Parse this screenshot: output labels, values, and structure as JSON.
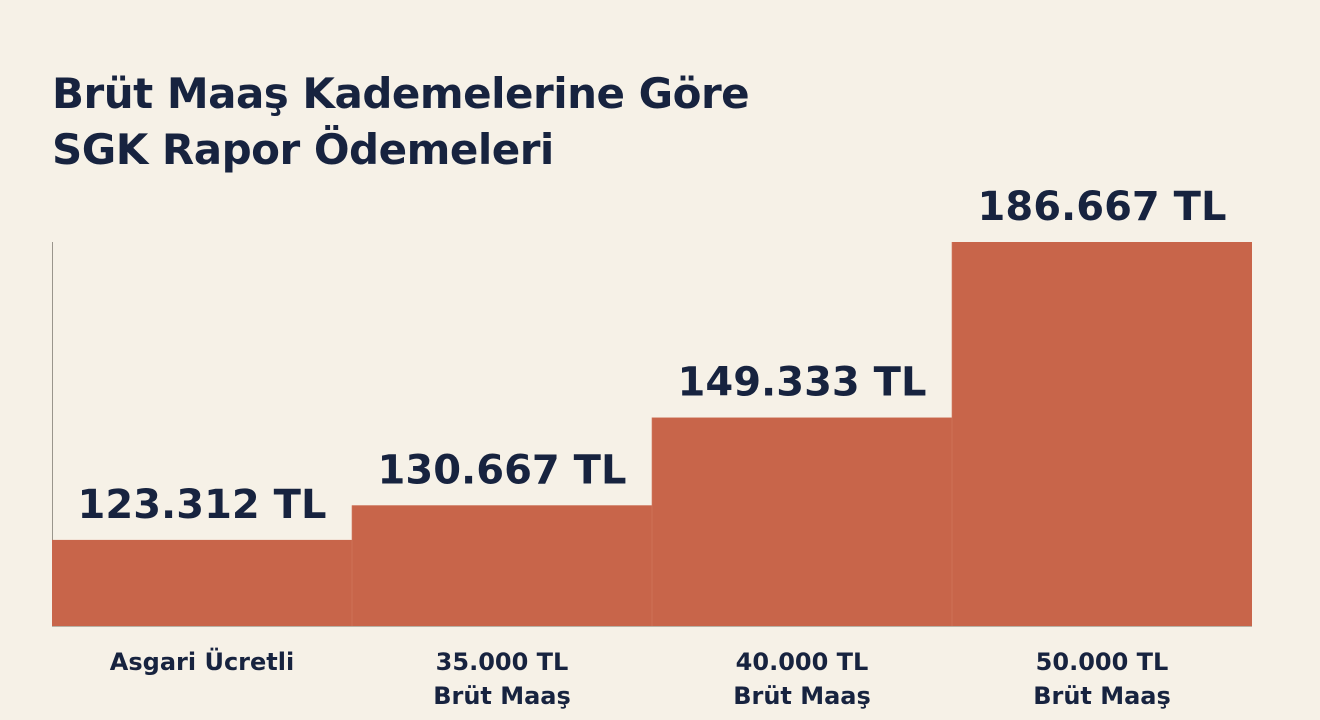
{
  "chart_data": {
    "type": "bar",
    "title_lines": [
      "Brüt Maaş Kademelerine Göre",
      "SGK Rapor Ödemeleri"
    ],
    "categories": [
      [
        "Asgari Ücretli"
      ],
      [
        "35.000 TL",
        "Brüt Maaş"
      ],
      [
        "40.000 TL",
        "Brüt Maaş"
      ],
      [
        "50.000 TL",
        "Brüt Maaş"
      ]
    ],
    "values": [
      123312,
      130667,
      149333,
      186667
    ],
    "value_labels": [
      "123.312 TL",
      "130.667 TL",
      "149.333 TL",
      "186.667 TL"
    ],
    "xlabel": "",
    "ylabel": "",
    "ylim": [
      105000,
      190000
    ],
    "grid": false,
    "legend": "none",
    "bar_color": "#c8654a"
  }
}
